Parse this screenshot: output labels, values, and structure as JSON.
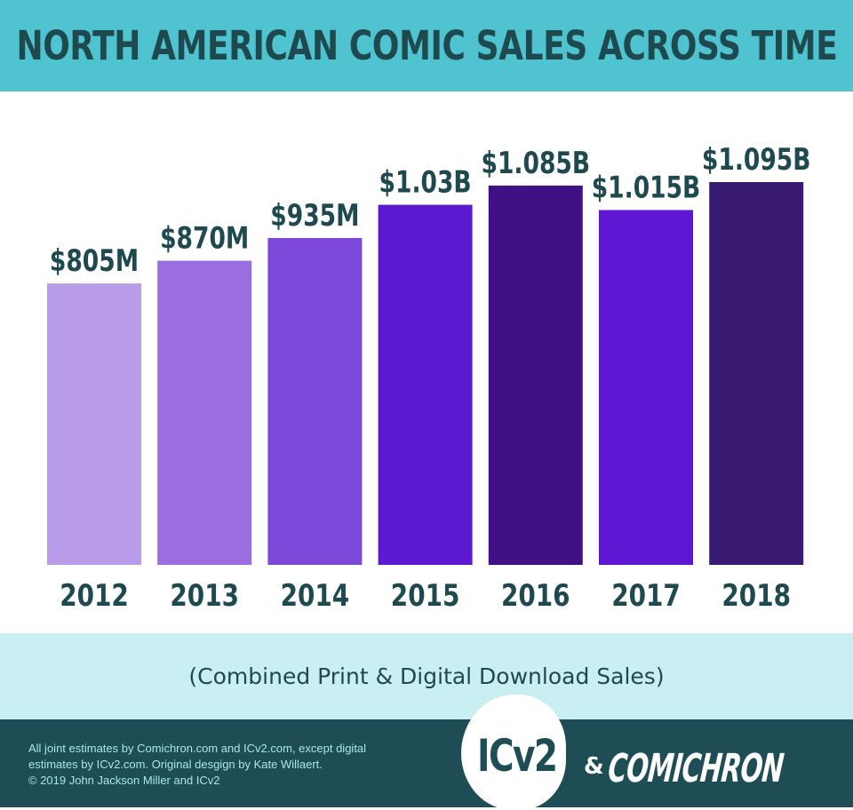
{
  "header": {
    "title": "NORTH AMERICAN COMIC SALES ACROSS TIME"
  },
  "subtitle": "(Combined Print & Digital Download Sales)",
  "footer": {
    "credits": [
      "All joint estimates by Comichron.com and ICv2.com, except digital",
      "estimates by ICv2.com.  Original desgign by Kate Willaert.",
      "© 2019 John Jackson Miller and ICv2"
    ],
    "logo_icv2": "ICv2",
    "logo_amp": "&",
    "logo_comichron": "COMICHRON"
  },
  "chart_data": {
    "type": "bar",
    "title": "NORTH AMERICAN COMIC SALES ACROSS TIME",
    "subtitle": "(Combined Print & Digital Download Sales)",
    "categories": [
      "2012",
      "2013",
      "2014",
      "2015",
      "2016",
      "2017",
      "2018"
    ],
    "values": [
      805,
      870,
      935,
      1030,
      1085,
      1015,
      1095
    ],
    "value_unit": "$M",
    "data_labels": [
      "$805M",
      "$870M",
      "$935M",
      "$1.03B",
      "$1.085B",
      "$1.015B",
      "$1.095B"
    ],
    "colors": [
      "#b89ce9",
      "#9b6ee0",
      "#7c48d9",
      "#5c1ad0",
      "#3f1185",
      "#5e17d3",
      "#3a1b73"
    ],
    "label_color": "#1e4a4f",
    "ylim": [
      0,
      1095
    ],
    "grid": false,
    "legend": "none"
  }
}
